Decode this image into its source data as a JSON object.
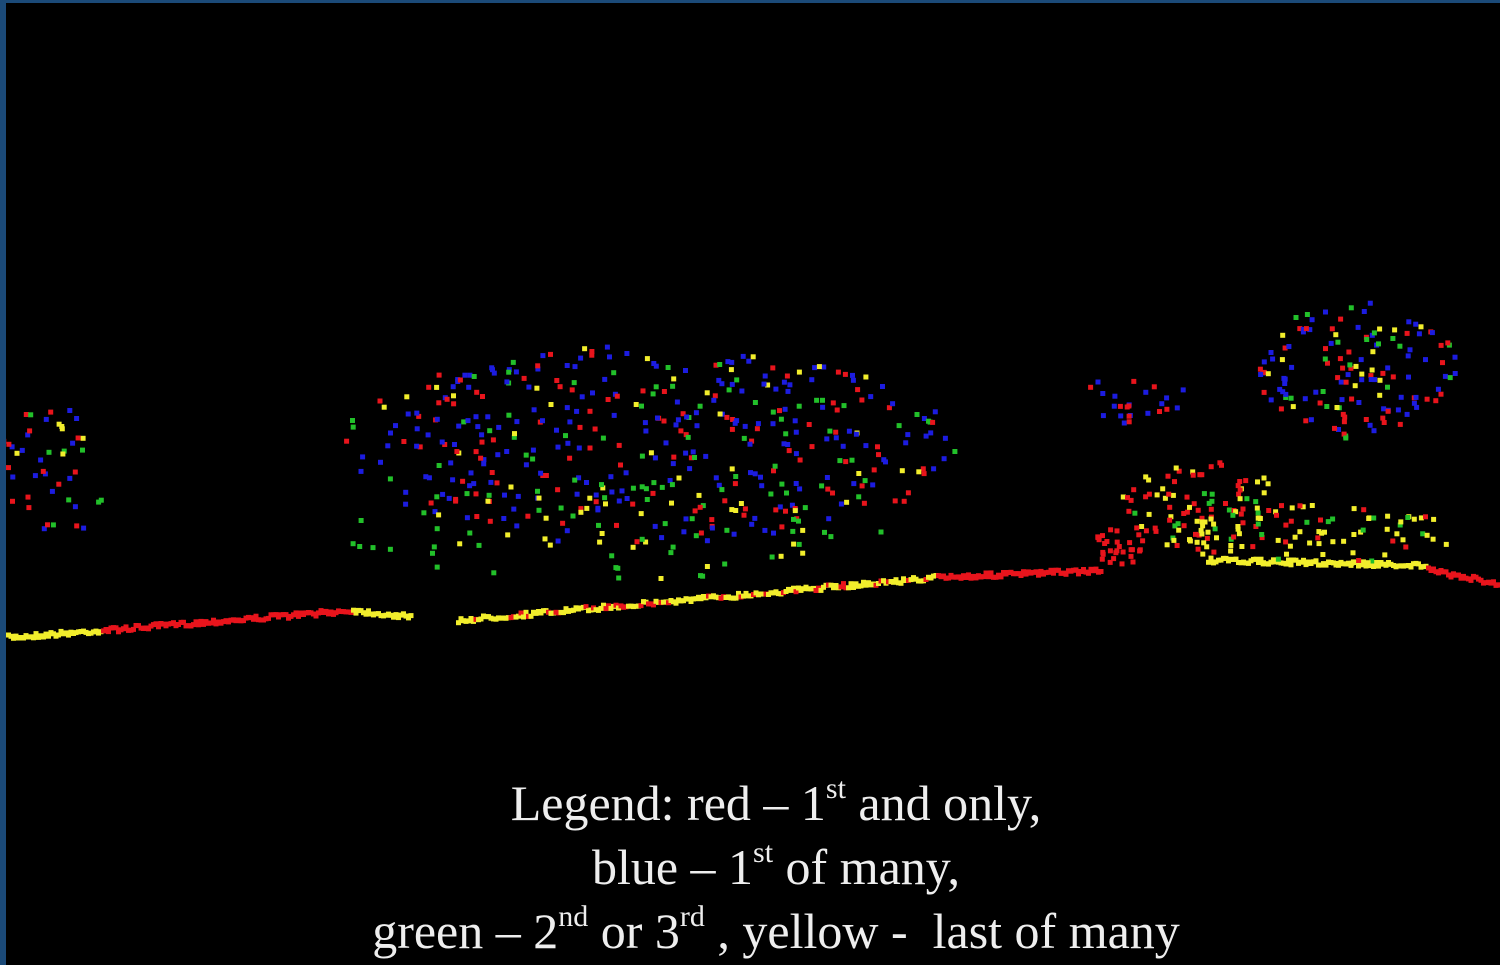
{
  "legend": {
    "lines": [
      [
        "Legend: red – 1",
        "st",
        " and only,"
      ],
      [
        "blue – 1",
        "st",
        " of many,"
      ],
      [
        "green – 2",
        "nd",
        " or 3",
        "rd",
        " , yellow -  last of many"
      ]
    ]
  }
}
